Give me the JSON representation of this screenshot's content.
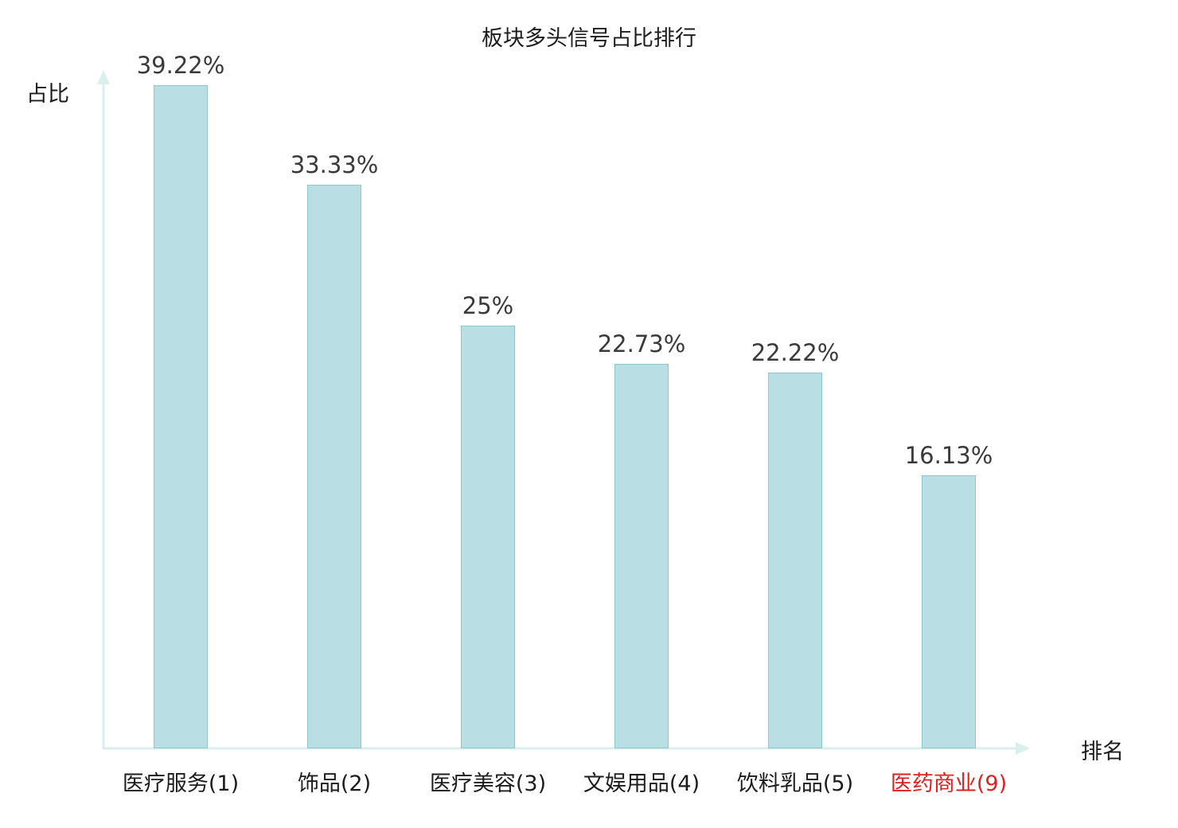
{
  "chart_data": {
    "type": "bar",
    "title": "板块多头信号占比排行",
    "xlabel": "排名",
    "ylabel": "占比",
    "categories": [
      "医疗服务(1)",
      "饰品(2)",
      "医疗美容(3)",
      "文娱用品(4)",
      "饮料乳品(5)",
      "医药商业(9)"
    ],
    "values": [
      39.22,
      33.33,
      25,
      22.73,
      22.22,
      16.13
    ],
    "value_labels": [
      "39.22%",
      "33.33%",
      "25%",
      "22.73%",
      "22.22%",
      "16.13%"
    ],
    "highlight_index": 5,
    "ylim": [
      0,
      40
    ],
    "grid": false,
    "legend": "none",
    "colors": {
      "bar_fill": "#b9dfe4",
      "bar_border": "#8ec6ce",
      "axis": "#d9efeb",
      "value_label": "#3a3a3a",
      "category_label": "#1c1c1c",
      "highlight_label": "#e01f1f",
      "background": "#ffffff"
    }
  }
}
